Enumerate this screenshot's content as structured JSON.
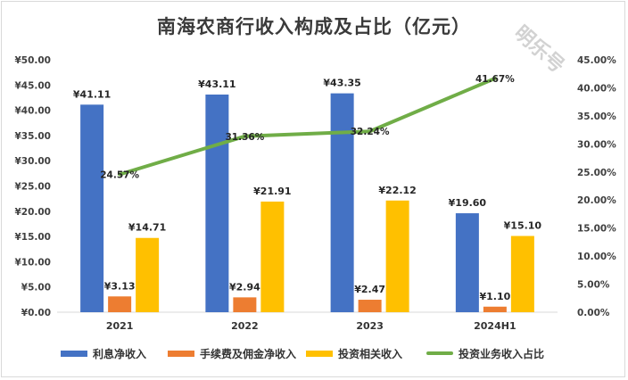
{
  "chart_data": {
    "type": "bar",
    "title": "南海农商行收入构成及占比（亿元）",
    "categories": [
      "2021",
      "2022",
      "2023",
      "2024H1"
    ],
    "series": [
      {
        "name": "利息净收入",
        "type": "bar",
        "axis": "left",
        "color": "#4472C4",
        "values": [
          41.11,
          43.11,
          43.35,
          19.6
        ],
        "labels": [
          "¥41.11",
          "¥43.11",
          "¥43.35",
          "¥19.60"
        ]
      },
      {
        "name": "手续费及佣金净收入",
        "type": "bar",
        "axis": "left",
        "color": "#ED7D31",
        "values": [
          3.13,
          2.94,
          2.47,
          1.1
        ],
        "labels": [
          "¥3.13",
          "¥2.94",
          "¥2.47",
          "¥1.10"
        ]
      },
      {
        "name": "投资相关收入",
        "type": "bar",
        "axis": "left",
        "color": "#FFC000",
        "values": [
          14.71,
          21.91,
          22.12,
          15.1
        ],
        "labels": [
          "¥14.71",
          "¥21.91",
          "¥22.12",
          "¥15.10"
        ]
      },
      {
        "name": "投资业务收入占比",
        "type": "line",
        "axis": "right",
        "color": "#70AD47",
        "values": [
          24.57,
          31.36,
          32.24,
          41.67
        ],
        "labels": [
          "24.57%",
          "31.36%",
          "32.24%",
          "41.67%"
        ]
      }
    ],
    "left_axis": {
      "ylim": [
        0,
        50
      ],
      "ticks": [
        "¥0.00",
        "¥5.00",
        "¥10.00",
        "¥15.00",
        "¥20.00",
        "¥25.00",
        "¥30.00",
        "¥35.00",
        "¥40.00",
        "¥45.00",
        "¥50.00"
      ]
    },
    "right_axis": {
      "ylim": [
        0,
        45
      ],
      "ticks": [
        "0.00%",
        "5.00%",
        "10.00%",
        "15.00%",
        "20.00%",
        "25.00%",
        "30.00%",
        "35.00%",
        "40.00%",
        "45.00%"
      ]
    },
    "grid": false,
    "legend": "bottom"
  },
  "watermark": "明乐号"
}
